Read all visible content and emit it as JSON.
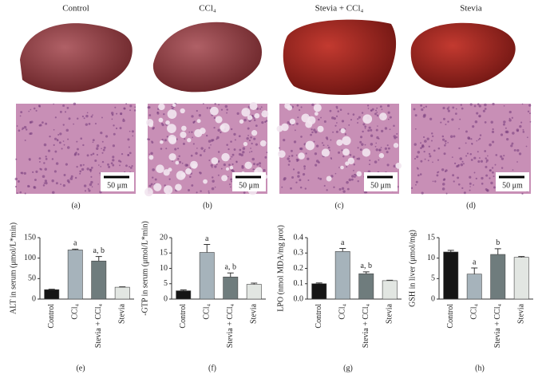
{
  "figure": {
    "columns": [
      "Control",
      "CCl₄",
      "Stevia + CCl₄",
      "Stevia"
    ],
    "panels": [
      "(a)",
      "(b)",
      "(c)",
      "(d)"
    ],
    "scale_bar": "50 μm"
  },
  "chart_data": [
    {
      "type": "bar",
      "label": "(e)",
      "y_label": "ALT in serum (μmol/L*min)",
      "categories": [
        "Control",
        "CCl₄",
        "Stevia + CCl₄",
        "Stevia"
      ],
      "values": [
        23,
        120,
        93,
        29
      ],
      "errors": [
        1,
        2,
        11,
        1
      ],
      "annotations": [
        null,
        "a",
        "a, b",
        null
      ],
      "colors": [
        "#151515",
        "#a6b3bb",
        "#6f7c7d",
        "#e2e6e2"
      ],
      "ylim": [
        0,
        150
      ],
      "yticks": [
        0,
        50,
        100,
        150
      ]
    },
    {
      "type": "bar",
      "label": "(f)",
      "y_label": "-GTP in serum (μmol/L*min)",
      "categories": [
        "Control",
        "CCl₄",
        "Stevia + CCl₄",
        "Stevia"
      ],
      "values": [
        2.7,
        15.2,
        7.2,
        4.8
      ],
      "errors": [
        0.3,
        2.6,
        1.3,
        0.4
      ],
      "annotations": [
        null,
        "a",
        "a, b",
        null
      ],
      "colors": [
        "#151515",
        "#a6b3bb",
        "#6f7c7d",
        "#e2e6e2"
      ],
      "ylim": [
        0,
        20
      ],
      "yticks": [
        0,
        5,
        10,
        15,
        20
      ]
    },
    {
      "type": "bar",
      "label": "(g)",
      "y_label": "LPO (nmol MDA/mg prot)",
      "categories": [
        "Control",
        "CCl₄",
        "Stevia + CCl₄",
        "Stevia"
      ],
      "values": [
        0.1,
        0.31,
        0.165,
        0.12
      ],
      "errors": [
        0.005,
        0.02,
        0.012,
        0.003
      ],
      "annotations": [
        null,
        "a",
        "a, b",
        null
      ],
      "colors": [
        "#151515",
        "#a6b3bb",
        "#6f7c7d",
        "#e2e6e2"
      ],
      "ylim": [
        0,
        0.4
      ],
      "yticks": [
        {
          "value": 0,
          "label": "0.0"
        },
        0.1,
        0.2,
        0.3,
        0.4
      ]
    },
    {
      "type": "bar",
      "label": "(h)",
      "y_label": "GSH in liver (μmol/mg)",
      "categories": [
        "Control",
        "CCl₄",
        "Stevia + CCl₄",
        "Stevia"
      ],
      "values": [
        11.5,
        6.1,
        10.9,
        10.2
      ],
      "errors": [
        0.4,
        1.5,
        1.4,
        0.2
      ],
      "annotations": [
        null,
        "a",
        "b",
        null
      ],
      "colors": [
        "#151515",
        "#a6b3bb",
        "#6f7c7d",
        "#e2e6e2"
      ],
      "ylim": [
        0,
        15
      ],
      "yticks": [
        0,
        5,
        10,
        15
      ]
    }
  ]
}
